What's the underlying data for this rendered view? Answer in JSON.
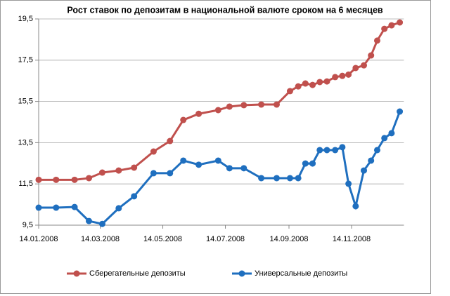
{
  "chart_data": {
    "type": "line",
    "title": "Рост ставок по депозитам в национальной валюте сроком на 6 месяцев",
    "x": [
      "14.01.2008",
      "31.01.2008",
      "18.02.2008",
      "03.03.2008",
      "16.03.2008",
      "01.04.2008",
      "16.04.2008",
      "05.05.2008",
      "21.05.2008",
      "03.06.2008",
      "18.06.2008",
      "07.07.2008",
      "18.07.2008",
      "01.08.2008",
      "18.08.2008",
      "02.09.2008",
      "15.09.2008",
      "23.09.2008",
      "30.09.2008",
      "07.10.2008",
      "14.10.2008",
      "21.10.2008",
      "29.10.2008",
      "05.11.2008",
      "11.11.2008",
      "18.11.2008",
      "26.11.2008",
      "03.12.2008",
      "09.12.2008",
      "16.12.2008",
      "23.12.2008",
      "31.12.2008"
    ],
    "series": [
      {
        "name": "Сберегательные депозиты",
        "color": "#c0504d",
        "values": [
          11.7,
          11.7,
          11.7,
          11.78,
          12.05,
          12.15,
          12.29,
          13.07,
          13.58,
          14.6,
          14.9,
          15.08,
          15.25,
          15.32,
          15.35,
          15.35,
          16.0,
          16.23,
          16.37,
          16.3,
          16.44,
          16.47,
          16.68,
          16.74,
          16.8,
          17.12,
          17.25,
          17.73,
          18.45,
          19.02,
          19.19,
          19.33
        ]
      },
      {
        "name": "Универсальные депозиты",
        "color": "#1f6fbf",
        "values": [
          10.35,
          10.35,
          10.38,
          9.7,
          9.56,
          10.32,
          10.9,
          12.02,
          12.02,
          12.63,
          12.43,
          12.63,
          12.26,
          12.26,
          11.78,
          11.78,
          11.78,
          11.78,
          12.49,
          12.49,
          13.14,
          13.14,
          13.14,
          13.28,
          11.51,
          10.42,
          12.15,
          12.63,
          13.14,
          13.72,
          13.96,
          15.01
        ]
      }
    ],
    "xlim": [
      "14.01.2008",
      "04.01.2009"
    ],
    "xticks": [
      "14.01.2008",
      "14.03.2008",
      "14.05.2008",
      "14.07.2008",
      "14.09.2008",
      "14.11.2008"
    ],
    "ylim": [
      9.5,
      19.5
    ],
    "yticks": [
      {
        "value": 9.5,
        "label": "9,5"
      },
      {
        "value": 11.5,
        "label": "11,5"
      },
      {
        "value": 13.5,
        "label": "13,5"
      },
      {
        "value": 15.5,
        "label": "15,5"
      },
      {
        "value": 17.5,
        "label": "17,5"
      },
      {
        "value": 19.5,
        "label": "19,5"
      }
    ],
    "grid": true,
    "legend": "bottom"
  }
}
